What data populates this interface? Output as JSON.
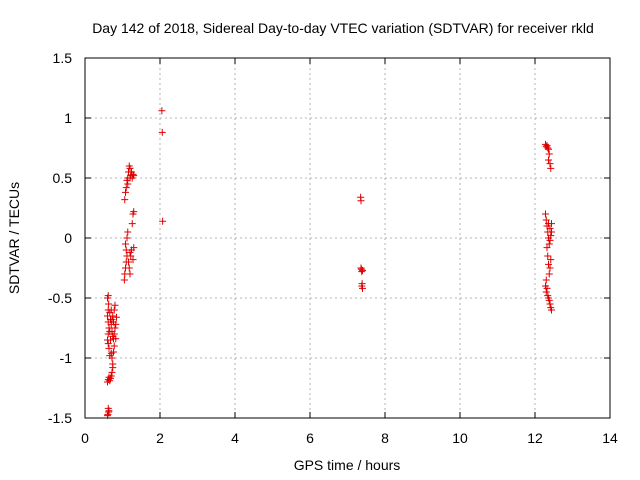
{
  "chart_data": {
    "type": "scatter",
    "title": "Day 142 of 2018, Sidereal Day-to-day VTEC variation (SDTVAR) for receiver rkld",
    "xlabel": "GPS time / hours",
    "ylabel": "SDTVAR / TECUs",
    "xlim": [
      0,
      14
    ],
    "ylim": [
      -1.5,
      1.5
    ],
    "xticks": [
      0,
      2,
      4,
      6,
      8,
      10,
      12,
      14
    ],
    "yticks": [
      -1.5,
      -1,
      -0.5,
      0,
      0.5,
      1,
      1.5
    ],
    "xtick_labels": [
      "0",
      "2",
      "4",
      "6",
      "8",
      "10",
      "12",
      "14"
    ],
    "ytick_labels": [
      "-1.5",
      "-1",
      "-0.5",
      "0",
      "0.5",
      "1",
      "1.5"
    ],
    "grid": true,
    "marker": "plus",
    "color": "#e00000",
    "series": [
      {
        "name": "SDTVAR",
        "points": [
          [
            0.6,
            -1.48
          ],
          [
            0.61,
            -1.47
          ],
          [
            0.62,
            -1.42
          ],
          [
            0.63,
            -1.45
          ],
          [
            0.64,
            -1.44
          ],
          [
            0.6,
            -1.2
          ],
          [
            0.62,
            -1.18
          ],
          [
            0.64,
            -1.16
          ],
          [
            0.66,
            -1.19
          ],
          [
            0.68,
            -1.17
          ],
          [
            0.7,
            -1.15
          ],
          [
            0.72,
            -1.12
          ],
          [
            0.74,
            -1.08
          ],
          [
            0.72,
            -1.0
          ],
          [
            0.7,
            -0.96
          ],
          [
            0.66,
            -0.98
          ],
          [
            0.64,
            -0.92
          ],
          [
            0.62,
            -0.88
          ],
          [
            0.6,
            -0.85
          ],
          [
            0.62,
            -0.8
          ],
          [
            0.64,
            -0.75
          ],
          [
            0.62,
            -0.7
          ],
          [
            0.6,
            -0.65
          ],
          [
            0.62,
            -0.6
          ],
          [
            0.63,
            -0.55
          ],
          [
            0.6,
            -0.5
          ],
          [
            0.62,
            -0.48
          ],
          [
            0.66,
            -0.62
          ],
          [
            0.68,
            -0.68
          ],
          [
            0.7,
            -0.72
          ],
          [
            0.72,
            -0.78
          ],
          [
            0.74,
            -0.82
          ],
          [
            0.76,
            -0.84
          ],
          [
            0.78,
            -0.8
          ],
          [
            0.8,
            -0.75
          ],
          [
            0.76,
            -0.7
          ],
          [
            0.74,
            -0.65
          ],
          [
            0.78,
            -0.6
          ],
          [
            0.8,
            -0.56
          ],
          [
            0.82,
            -0.72
          ],
          [
            0.84,
            -0.66
          ],
          [
            0.82,
            -0.84
          ],
          [
            0.78,
            -0.9
          ],
          [
            0.76,
            -0.95
          ],
          [
            0.74,
            -1.05
          ],
          [
            0.68,
            -0.85
          ],
          [
            0.66,
            -0.78
          ],
          [
            0.7,
            -0.6
          ],
          [
            0.72,
            -0.68
          ],
          [
            1.05,
            -0.35
          ],
          [
            1.06,
            -0.3
          ],
          [
            1.08,
            -0.25
          ],
          [
            1.1,
            -0.2
          ],
          [
            1.12,
            -0.15
          ],
          [
            1.1,
            -0.1
          ],
          [
            1.08,
            -0.05
          ],
          [
            1.12,
            0.0
          ],
          [
            1.14,
            0.05
          ],
          [
            1.16,
            -0.2
          ],
          [
            1.18,
            -0.25
          ],
          [
            1.2,
            -0.3
          ],
          [
            1.22,
            -0.15
          ],
          [
            1.24,
            -0.1
          ],
          [
            1.26,
            0.12
          ],
          [
            1.28,
            0.2
          ],
          [
            1.3,
            0.22
          ],
          [
            1.28,
            -0.18
          ],
          [
            1.3,
            -0.08
          ],
          [
            1.2,
            -0.12
          ],
          [
            1.06,
            0.32
          ],
          [
            1.08,
            0.38
          ],
          [
            1.1,
            0.42
          ],
          [
            1.12,
            0.48
          ],
          [
            1.14,
            0.5
          ],
          [
            1.16,
            0.55
          ],
          [
            1.18,
            0.6
          ],
          [
            1.2,
            0.58
          ],
          [
            1.22,
            0.52
          ],
          [
            1.24,
            0.55
          ],
          [
            1.26,
            0.5
          ],
          [
            1.28,
            0.53
          ],
          [
            1.3,
            0.52
          ],
          [
            1.14,
            0.45
          ],
          [
            1.2,
            0.5
          ],
          [
            2.05,
            1.06
          ],
          [
            2.06,
            0.88
          ],
          [
            2.07,
            0.14
          ],
          [
            7.35,
            0.34
          ],
          [
            7.36,
            0.31
          ],
          [
            7.37,
            -0.26
          ],
          [
            7.38,
            -0.28
          ],
          [
            7.4,
            -0.27
          ],
          [
            7.36,
            -0.25
          ],
          [
            7.39,
            -0.38
          ],
          [
            7.4,
            -0.42
          ],
          [
            7.38,
            -0.4
          ],
          [
            12.28,
            0.78
          ],
          [
            12.3,
            0.76
          ],
          [
            12.32,
            0.77
          ],
          [
            12.34,
            0.75
          ],
          [
            12.36,
            0.74
          ],
          [
            12.38,
            0.7
          ],
          [
            12.4,
            0.62
          ],
          [
            12.42,
            0.58
          ],
          [
            12.36,
            0.65
          ],
          [
            12.28,
            0.2
          ],
          [
            12.3,
            0.15
          ],
          [
            12.32,
            0.1
          ],
          [
            12.34,
            0.05
          ],
          [
            12.36,
            0.0
          ],
          [
            12.38,
            -0.05
          ],
          [
            12.4,
            0.08
          ],
          [
            12.42,
            0.02
          ],
          [
            12.44,
            0.12
          ],
          [
            12.32,
            -0.08
          ],
          [
            12.34,
            -0.15
          ],
          [
            12.36,
            -0.22
          ],
          [
            12.38,
            -0.3
          ],
          [
            12.4,
            -0.25
          ],
          [
            12.42,
            -0.18
          ],
          [
            12.3,
            -0.35
          ],
          [
            12.32,
            -0.42
          ],
          [
            12.34,
            -0.48
          ],
          [
            12.36,
            -0.5
          ],
          [
            12.38,
            -0.52
          ],
          [
            12.4,
            -0.55
          ],
          [
            12.42,
            -0.58
          ],
          [
            12.44,
            -0.6
          ],
          [
            12.3,
            -0.45
          ],
          [
            12.28,
            -0.4
          ],
          [
            12.36,
            0.12
          ],
          [
            12.4,
            -0.02
          ],
          [
            12.44,
            0.05
          ]
        ]
      }
    ]
  }
}
